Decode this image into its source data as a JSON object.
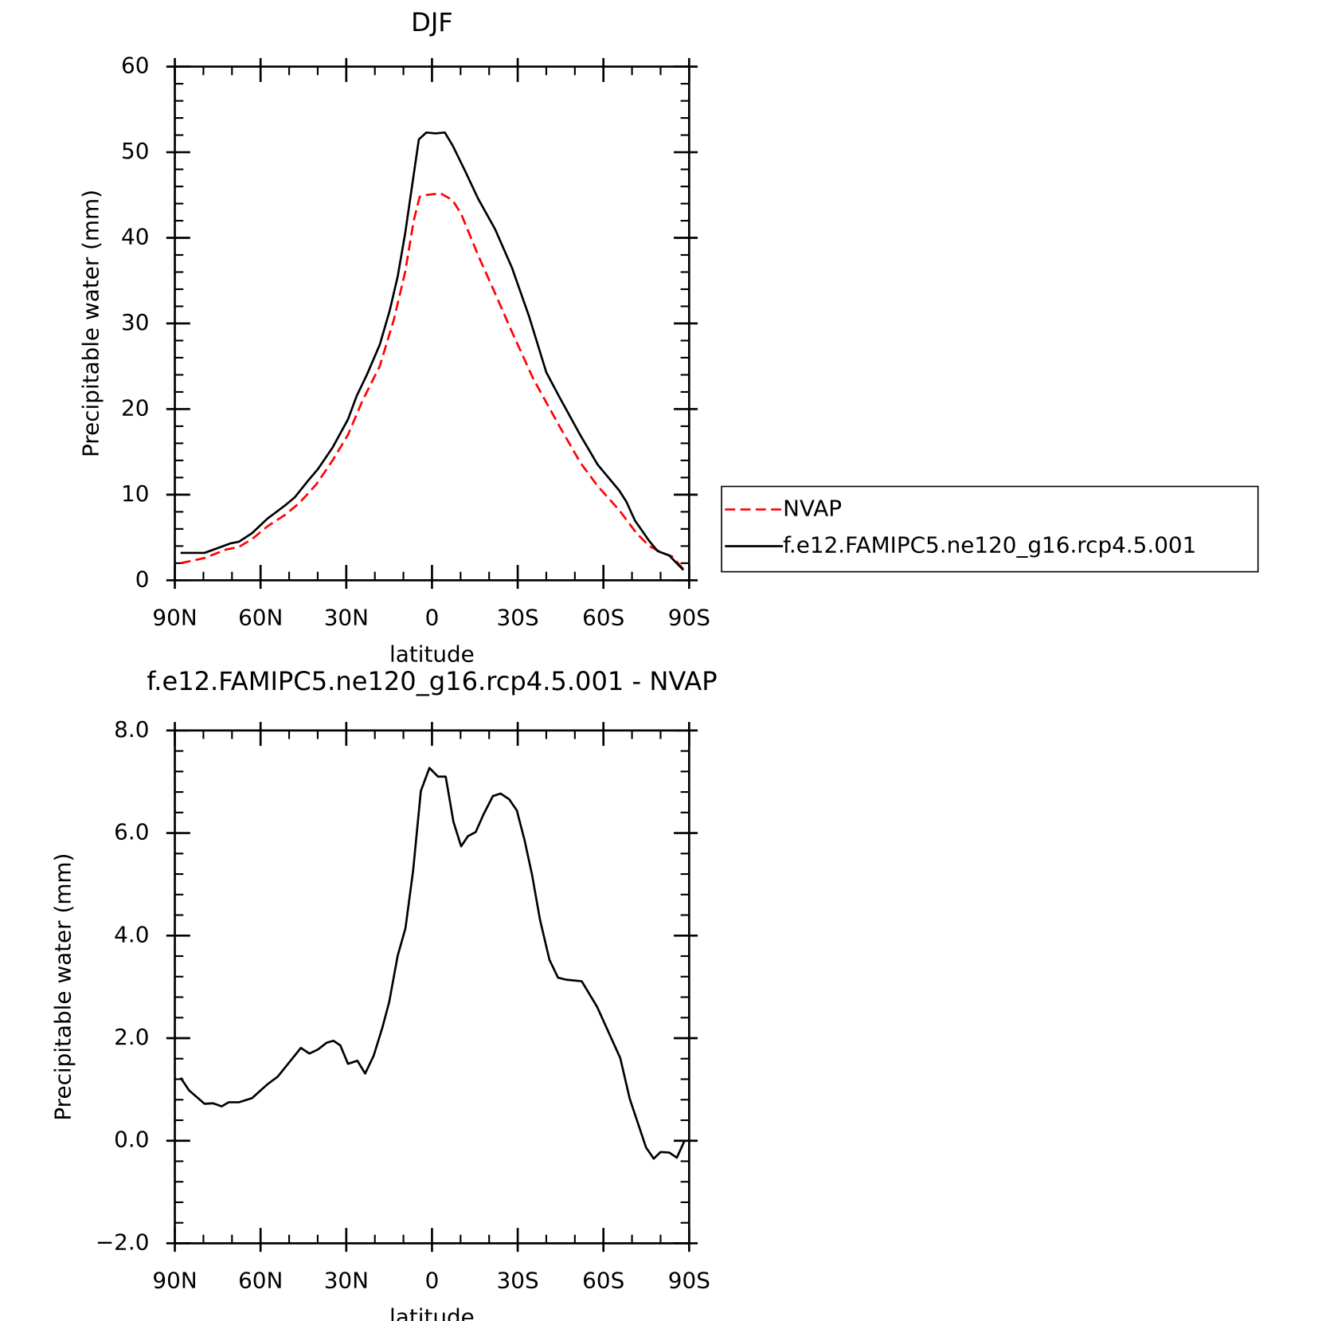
{
  "chart_data": [
    {
      "type": "line",
      "title": "DJF",
      "xlabel": "latitude",
      "ylabel": "Precipitable water (mm)",
      "xlim": [
        90,
        -90
      ],
      "xticks": [
        {
          "value": 90,
          "label": "90N"
        },
        {
          "value": 60,
          "label": "60N"
        },
        {
          "value": 30,
          "label": "30N"
        },
        0,
        {
          "value": -30,
          "label": "30S"
        },
        {
          "value": -60,
          "label": "60S"
        },
        {
          "value": -90,
          "label": "90S"
        }
      ],
      "ylim": [
        0,
        60
      ],
      "yticks": [
        0,
        10,
        20,
        30,
        40,
        50,
        60
      ],
      "legend": "outside right",
      "series": [
        {
          "name": "NVAP",
          "color": "#ff0000",
          "dash": true,
          "x": [
            88,
            79.6,
            72,
            67.6,
            63,
            57.6,
            51.6,
            46.5,
            40.5,
            34.8,
            29.4,
            24.3,
            18.3,
            13.3,
            9.4,
            6.4,
            4.3,
            2,
            -3,
            -7.2,
            -10.2,
            -16.1,
            -22.1,
            -28,
            -35.5,
            -44.6,
            -52,
            -58,
            -65.5,
            -71.6,
            -76,
            -80.6,
            -84,
            -88
          ],
          "values": [
            2,
            2.6,
            3.6,
            3.9,
            4.8,
            6.3,
            7.6,
            9,
            11.2,
            14,
            17,
            21,
            25,
            30.5,
            36,
            42,
            44.8,
            45,
            45.2,
            44.4,
            42.8,
            38,
            33.5,
            29,
            23.5,
            18,
            13.7,
            11,
            8.2,
            5.5,
            4,
            3.2,
            2.8,
            1.3
          ]
        },
        {
          "name": "f.e12.FAMIPC5.ne120_g16.rcp4.5.001",
          "color": "#000000",
          "dash": false,
          "x": [
            88,
            79.6,
            70.6,
            67.6,
            63,
            57.6,
            51.6,
            48,
            43.7,
            39.9,
            34.8,
            29.4,
            26.4,
            22.8,
            18.3,
            14.8,
            12,
            9.4,
            6.7,
            4.6,
            2,
            -1.2,
            -4.5,
            -7.2,
            -11.6,
            -16.1,
            -22.1,
            -28,
            -34,
            -40,
            -44.6,
            -52,
            -58,
            -65.5,
            -68,
            -71,
            -76,
            -79,
            -83,
            -88
          ],
          "values": [
            3.2,
            3.2,
            4.3,
            4.5,
            5.5,
            7.2,
            8.7,
            9.7,
            11.5,
            13,
            15.5,
            18.8,
            21.5,
            24,
            27.5,
            31.5,
            35.5,
            40.5,
            46.7,
            51.5,
            52.3,
            52.2,
            52.3,
            50.8,
            47.8,
            44.6,
            41,
            36.5,
            30.8,
            24.3,
            21.4,
            16.9,
            13.5,
            10.5,
            9.2,
            7,
            4.6,
            3.4,
            2.9,
            1.2
          ]
        }
      ]
    },
    {
      "type": "line",
      "title": "f.e12.FAMIPC5.ne120_g16.rcp4.5.001  -  NVAP",
      "xlabel": "latitude",
      "ylabel": "Precipitable water (mm)",
      "xlim": [
        90,
        -90
      ],
      "xticks": [
        {
          "value": 90,
          "label": "90N"
        },
        {
          "value": 60,
          "label": "60N"
        },
        {
          "value": 30,
          "label": "30N"
        },
        0,
        {
          "value": -30,
          "label": "30S"
        },
        {
          "value": -60,
          "label": "60S"
        },
        {
          "value": -90,
          "label": "90S"
        }
      ],
      "ylim": [
        -2,
        8
      ],
      "yticks": [
        {
          "value": -2,
          "label": "−2.0"
        },
        {
          "value": 0,
          "label": "0.0"
        },
        {
          "value": 2,
          "label": "2.0"
        },
        {
          "value": 4,
          "label": "4.0"
        },
        {
          "value": 6,
          "label": "6.0"
        },
        {
          "value": 8,
          "label": "8.0"
        }
      ],
      "series": [
        {
          "color": "#000000",
          "dash": false,
          "x": [
            88,
            85,
            79.6,
            76.6,
            73.6,
            71.2,
            67.6,
            63,
            60,
            57.6,
            54,
            49.5,
            45.9,
            42.9,
            39.9,
            36.9,
            34.5,
            32.1,
            29.4,
            26.1,
            23.4,
            20.4,
            17.4,
            15,
            12,
            9.3,
            6.6,
            3.9,
            0.9,
            -2.1,
            -4.8,
            -7.5,
            -10.2,
            -12.6,
            -15.3,
            -18,
            -21.3,
            -24,
            -27,
            -29.7,
            -32.4,
            -35,
            -37.8,
            -41.1,
            -44.1,
            -47,
            -52.4,
            -57.8,
            -65.9,
            -69.2,
            -74.9,
            -77.6,
            -80,
            -83,
            -85.7,
            -88.4
          ],
          "values": [
            1.23,
            0.98,
            0.72,
            0.73,
            0.67,
            0.75,
            0.75,
            0.83,
            0.98,
            1.1,
            1.25,
            1.56,
            1.81,
            1.7,
            1.78,
            1.91,
            1.95,
            1.86,
            1.5,
            1.56,
            1.31,
            1.66,
            2.2,
            2.7,
            3.61,
            4.14,
            5.27,
            6.82,
            7.27,
            7.1,
            7.1,
            6.22,
            5.74,
            5.94,
            6.02,
            6.36,
            6.72,
            6.77,
            6.66,
            6.44,
            5.86,
            5.19,
            4.31,
            3.53,
            3.18,
            3.14,
            3.11,
            2.61,
            1.61,
            0.82,
            -0.13,
            -0.35,
            -0.22,
            -0.23,
            -0.33,
            0
          ]
        }
      ]
    }
  ]
}
